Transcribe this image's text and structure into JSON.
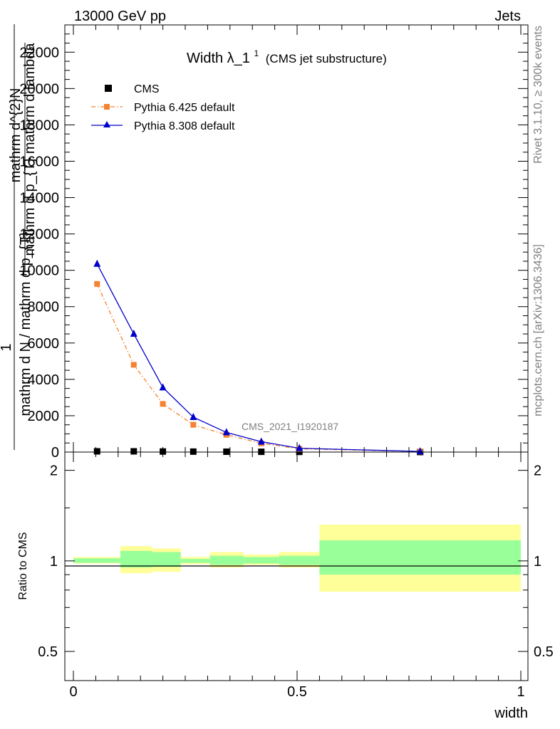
{
  "header": {
    "energy_label": "13000 GeV pp",
    "category_label": "Jets"
  },
  "side_text": {
    "rivet": "Rivet 3.1.10, ≥ 300k events",
    "mcplots": "mcplots.cern.ch [arXiv:1306.3436]"
  },
  "watermark": "CMS_2021_I1920187",
  "chart_data": [
    {
      "type": "line",
      "title": "Width λ_1",
      "title_sup": "1",
      "subtitle": "(CMS jet substructure)",
      "ylabel_num": "mathrm d^{2}N",
      "ylabel_den": "mathrm d p_{T} mathrm d lambda",
      "ylabel_prefix_num": "1",
      "ylabel_prefix_den": "mathrm d N / mathrm d p_{T}",
      "xlim": [
        0,
        1
      ],
      "ylim": [
        0,
        23500
      ],
      "ytick_values": [
        0,
        2000,
        4000,
        6000,
        8000,
        10000,
        12000,
        14000,
        16000,
        18000,
        20000,
        22000
      ],
      "ytick_labels": [
        "0",
        "2000",
        "4000",
        "6000",
        "8000",
        "10000",
        "12000",
        "14000",
        "16000",
        "18000",
        "20000",
        "22000"
      ],
      "legend_position": "top-left",
      "bin_edges": [
        0,
        0.105,
        0.175,
        0.24,
        0.305,
        0.38,
        0.46,
        0.55,
        1.0
      ],
      "x": [
        0.053,
        0.135,
        0.2,
        0.268,
        0.342,
        0.42,
        0.505,
        0.775
      ],
      "series": [
        {
          "name": "CMS",
          "color": "#000000",
          "marker": "square",
          "values": [
            40,
            40,
            30,
            25,
            20,
            15,
            10,
            2
          ]
        },
        {
          "name": "Pythia 6.425 default",
          "color": "#f58231",
          "marker": "square",
          "linestyle": "dash-dot",
          "values": [
            9250,
            4800,
            2650,
            1500,
            950,
            480,
            180,
            30
          ]
        },
        {
          "name": "Pythia 8.308 default",
          "color": "#0000cc",
          "marker": "triangle",
          "linestyle": "solid",
          "values": [
            10350,
            6500,
            3550,
            1920,
            1080,
            570,
            210,
            35
          ]
        }
      ]
    },
    {
      "type": "area",
      "ylabel": "Ratio to CMS",
      "xlabel": "width",
      "xlim": [
        0,
        1
      ],
      "ylim": [
        0.4,
        2.3
      ],
      "log_y": true,
      "ytick_values": [
        0.5,
        1,
        2
      ],
      "ytick_labels": [
        "0.5",
        "1",
        "2"
      ],
      "xtick_values": [
        0,
        0.5,
        1
      ],
      "xtick_labels": [
        "0",
        "0.5",
        "1"
      ],
      "bin_edges": [
        0,
        0.105,
        0.175,
        0.24,
        0.305,
        0.38,
        0.46,
        0.55,
        1.0
      ],
      "band_yellow": [
        [
          0.98,
          1.03
        ],
        [
          0.91,
          1.12
        ],
        [
          0.92,
          1.1
        ],
        [
          0.975,
          1.03
        ],
        [
          0.95,
          1.07
        ],
        [
          0.97,
          1.05
        ],
        [
          0.95,
          1.07
        ],
        [
          0.79,
          1.32
        ]
      ],
      "band_green": [
        [
          0.985,
          1.02
        ],
        [
          0.95,
          1.08
        ],
        [
          0.955,
          1.07
        ],
        [
          0.985,
          1.015
        ],
        [
          0.97,
          1.04
        ],
        [
          0.98,
          1.03
        ],
        [
          0.97,
          1.04
        ],
        [
          0.9,
          1.17
        ]
      ],
      "band_colors": {
        "yellow": "#ffff99",
        "green": "#99ff99"
      }
    }
  ]
}
